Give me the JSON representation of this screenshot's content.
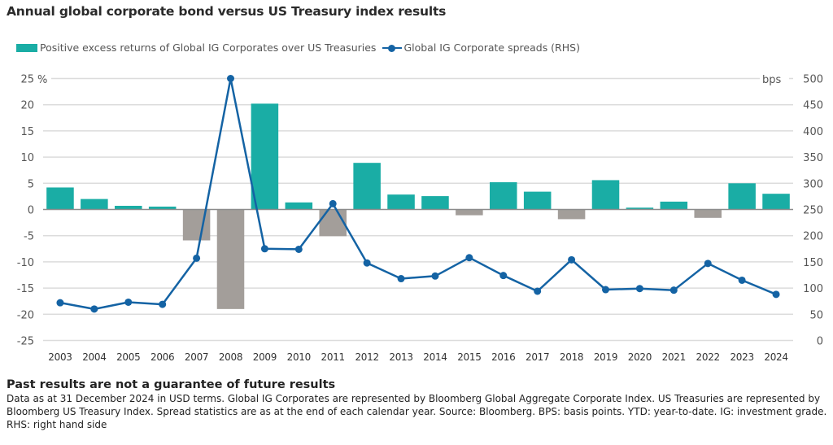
{
  "header": {
    "title": "Annual global corporate bond versus US Treasury index results"
  },
  "legend": {
    "bar_label": "Positive excess returns of Global IG Corporates over US Treasuries",
    "line_label": "Global IG Corporate spreads (RHS)"
  },
  "colors": {
    "positive_bar": "#1aada5",
    "negative_bar": "#a39e9a",
    "line": "#1463a4",
    "grid": "#dcdcdc",
    "zero_line": "#8c8c8c",
    "tick_text": "#555555"
  },
  "chart_data": {
    "type": "bar",
    "title": "Annual global corporate bond versus US Treasury index results",
    "xlabel": "",
    "ylabel": "%",
    "y2label": "bps",
    "categories": [
      "2003",
      "2004",
      "2005",
      "2006",
      "2007",
      "2008",
      "2009",
      "2010",
      "2011",
      "2012",
      "2013",
      "2014",
      "2015",
      "2016",
      "2017",
      "2018",
      "2019",
      "2020",
      "2021",
      "2022",
      "2023",
      "2024"
    ],
    "ylim": [
      -25,
      25
    ],
    "y_ticks": [
      25,
      20,
      15,
      10,
      5,
      0,
      -5,
      -10,
      -15,
      -20,
      -25
    ],
    "y2lim": [
      0,
      500
    ],
    "y2_ticks": [
      500,
      450,
      400,
      350,
      300,
      250,
      200,
      150,
      100,
      50,
      0
    ],
    "grid": true,
    "legend_position": "top-left",
    "series": [
      {
        "name": "Positive excess returns of Global IG Corporates over US Treasuries",
        "type": "bar",
        "axis": "left",
        "unit": "%",
        "values": [
          4.2,
          2.0,
          0.7,
          0.55,
          -5.9,
          -19.0,
          20.2,
          1.35,
          -5.1,
          8.9,
          2.85,
          2.55,
          -1.1,
          5.2,
          3.4,
          -1.85,
          5.6,
          0.35,
          1.5,
          -1.6,
          5.0,
          3.0
        ]
      },
      {
        "name": "Global IG Corporate spreads (RHS)",
        "type": "line",
        "axis": "right",
        "unit": "bps",
        "values": [
          72,
          60,
          73,
          69,
          157,
          500,
          175,
          174,
          261,
          148,
          118,
          123,
          158,
          124,
          94,
          154,
          97,
          99,
          96,
          147,
          115,
          88
        ]
      }
    ]
  },
  "footer": {
    "disclaimer": "Past results are not a guarantee of future results",
    "note": "Data as at 31 December 2024 in USD terms. Global IG Corporates are represented by Bloomberg Global Aggregate Corporate Index. US Treasuries are represented by Bloomberg US Treasury Index. Spread statistics are as at the end of each calendar year. Source: Bloomberg.  BPS: basis points. YTD: year-to-date. IG: investment grade. RHS: right hand side"
  }
}
